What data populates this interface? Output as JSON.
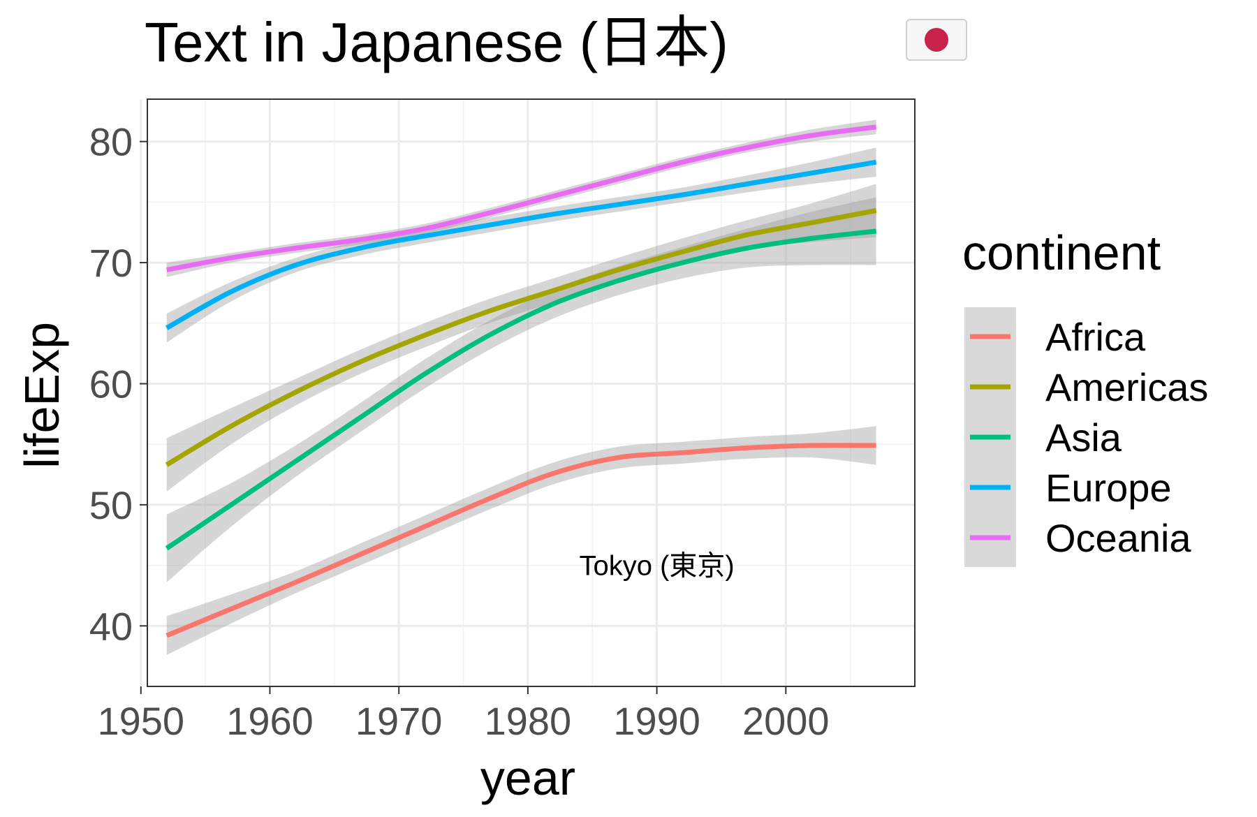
{
  "chart_data": {
    "type": "line",
    "title": "Text in Japanese (日本)",
    "title_flag_icon": "japan-flag-icon",
    "xlabel": "year",
    "ylabel": "lifeExp",
    "xlim": [
      1950.5,
      2010
    ],
    "ylim": [
      35,
      83.5
    ],
    "x_ticks": [
      1950,
      1960,
      1970,
      1980,
      1990,
      2000
    ],
    "y_ticks": [
      40,
      50,
      60,
      70,
      80
    ],
    "grid": true,
    "legend": {
      "title": "continent",
      "position": "right"
    },
    "annotation": {
      "text": "Tokyo (東京)",
      "x": 1990,
      "y": 45
    },
    "x": [
      1952,
      1957,
      1962,
      1967,
      1972,
      1977,
      1982,
      1987,
      1992,
      1997,
      2002,
      2007
    ],
    "series": [
      {
        "name": "Africa",
        "color": "#F8766D",
        "values": [
          39.2,
          41.4,
          43.6,
          45.9,
          48.2,
          50.5,
          52.6,
          53.9,
          54.3,
          54.7,
          54.9,
          54.9
        ],
        "band": [
          1.6,
          1.2,
          0.9,
          0.9,
          0.9,
          0.9,
          0.9,
          0.9,
          0.9,
          0.9,
          1.0,
          1.6
        ]
      },
      {
        "name": "Americas",
        "color": "#A3A500",
        "values": [
          53.3,
          56.5,
          59.3,
          61.8,
          64.0,
          66.0,
          67.7,
          69.4,
          70.9,
          72.3,
          73.3,
          74.3
        ],
        "band": [
          2.2,
          1.5,
          1.1,
          1.0,
          1.0,
          1.0,
          1.0,
          1.0,
          1.1,
          1.2,
          1.6,
          2.2
        ]
      },
      {
        "name": "Asia",
        "color": "#00BF7D",
        "values": [
          46.4,
          50.0,
          53.6,
          57.2,
          60.8,
          64.0,
          66.6,
          68.5,
          70.0,
          71.2,
          72.0,
          72.6
        ],
        "band": [
          2.8,
          1.8,
          1.3,
          1.2,
          1.2,
          1.2,
          1.2,
          1.2,
          1.3,
          1.6,
          2.2,
          2.8
        ]
      },
      {
        "name": "Europe",
        "color": "#00B0F6",
        "values": [
          64.6,
          67.6,
          69.8,
          71.2,
          72.2,
          73.1,
          74.0,
          74.8,
          75.6,
          76.5,
          77.4,
          78.3
        ],
        "band": [
          1.2,
          0.8,
          0.6,
          0.6,
          0.6,
          0.6,
          0.6,
          0.6,
          0.6,
          0.7,
          0.9,
          1.2
        ]
      },
      {
        "name": "Oceania",
        "color": "#E76BF3",
        "values": [
          69.4,
          70.4,
          71.2,
          71.9,
          72.8,
          74.1,
          75.5,
          76.9,
          78.3,
          79.5,
          80.5,
          81.2
        ],
        "band": [
          0.6,
          0.4,
          0.4,
          0.4,
          0.4,
          0.4,
          0.4,
          0.4,
          0.4,
          0.4,
          0.5,
          0.6
        ]
      }
    ]
  }
}
